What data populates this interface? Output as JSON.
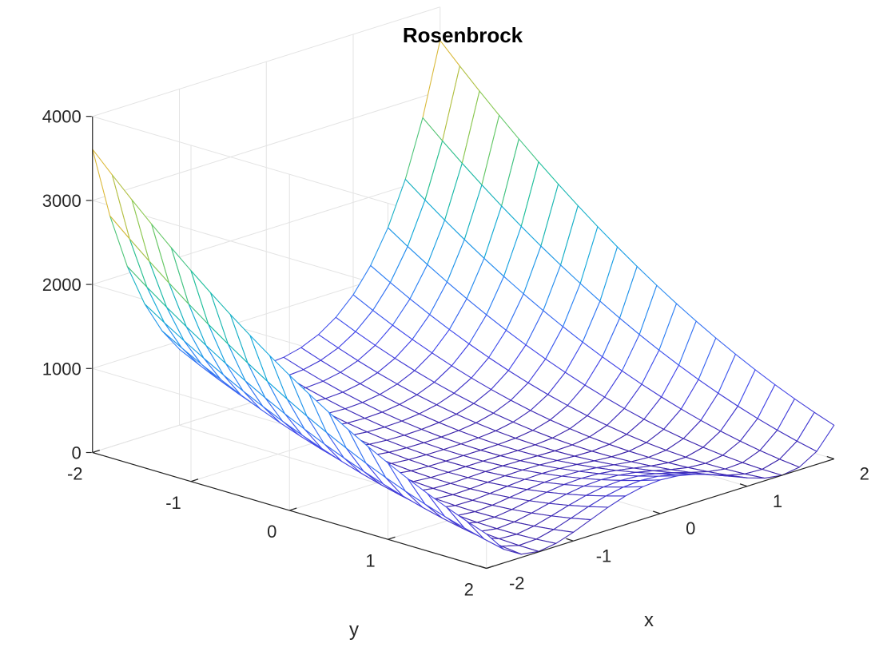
{
  "chart_data": {
    "type": "surface",
    "title": "Rosenbrock",
    "xlabel": "x",
    "ylabel": "y",
    "zlabel": "",
    "function": "f(x,y) = 100*(y - x^2)^2 + (1 - x)^2",
    "x": [
      -2,
      -1.8,
      -1.6,
      -1.4,
      -1.2,
      -1,
      -0.8,
      -0.6,
      -0.4,
      -0.2,
      0,
      0.2,
      0.4,
      0.6,
      0.8,
      1,
      1.2,
      1.4,
      1.6,
      1.8,
      2
    ],
    "y": [
      -2,
      -1.8,
      -1.6,
      -1.4,
      -1.2,
      -1,
      -0.8,
      -0.6,
      -0.4,
      -0.2,
      0,
      0.2,
      0.4,
      0.6,
      0.8,
      1,
      1.2,
      1.4,
      1.6,
      1.8,
      2
    ],
    "xlim": [
      -2,
      2
    ],
    "ylim": [
      -2,
      2
    ],
    "zlim": [
      0,
      4000
    ],
    "x_ticks": [
      "-2",
      "-1",
      "0",
      "1",
      "2"
    ],
    "y_ticks": [
      "-2",
      "-1",
      "0",
      "1",
      "2"
    ],
    "z_ticks": [
      "0",
      "1000",
      "2000",
      "3000",
      "4000"
    ],
    "style": "mesh",
    "colormap": "parula",
    "colormap_stops": [
      "#3e26a8",
      "#4749eb",
      "#2f85f5",
      "#17a9de",
      "#1ebf9d",
      "#7fcb57",
      "#e0b93a",
      "#f9fb15"
    ],
    "grid": true,
    "box": false
  }
}
